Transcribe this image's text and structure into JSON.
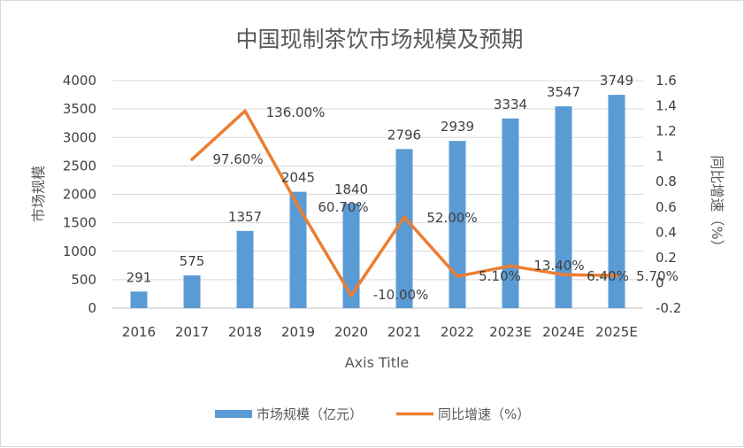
{
  "chart_data": {
    "type": "bar",
    "title": "中国现制茶饮市场规模及预期",
    "categories": [
      "2016",
      "2017",
      "2018",
      "2019",
      "2020",
      "2021",
      "2022",
      "2023E",
      "2024E",
      "2025E"
    ],
    "series": [
      {
        "name": "市场规模（亿元）",
        "type": "bar",
        "axis": "left",
        "color": "#5b9bd5",
        "values": [
          291,
          575,
          1357,
          2045,
          1840,
          2796,
          2939,
          3334,
          3547,
          3749
        ],
        "labels": [
          "291",
          "575",
          "1357",
          "2045",
          "1840",
          "2796",
          "2939",
          "3334",
          "3547",
          "3749"
        ]
      },
      {
        "name": "同比增速（%）",
        "type": "line",
        "axis": "right",
        "color": "#ed7d31",
        "values": [
          null,
          0.976,
          1.36,
          0.607,
          -0.1,
          0.52,
          0.051,
          0.134,
          0.064,
          0.057
        ],
        "labels": [
          "",
          "97.60%",
          "136.00%",
          "60.70%",
          "-10.00%",
          "52.00%",
          "5.10%",
          "13.40%",
          "6.40%",
          "5.70%"
        ]
      }
    ],
    "xlabel": "Axis Title",
    "ylabel": "市场规模",
    "y2label": "同比增速（%）",
    "ylim": [
      0,
      4000
    ],
    "y2lim": [
      -0.2,
      1.6
    ],
    "yticks": [
      "0",
      "500",
      "1000",
      "1500",
      "2000",
      "2500",
      "3000",
      "3500",
      "4000"
    ],
    "y2ticks": [
      "-0.2",
      "0",
      "0.2",
      "0.4",
      "0.6",
      "0.8",
      "1",
      "1.2",
      "1.4",
      "1.6"
    ],
    "grid": true,
    "legend": "bottom"
  }
}
